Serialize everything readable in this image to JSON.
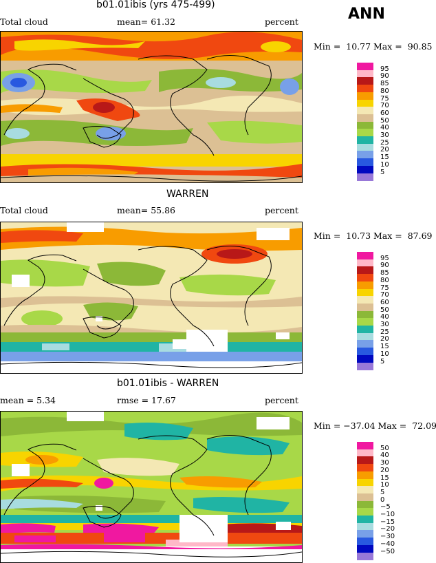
{
  "season": "ANN",
  "palette_colors": {
    "95": "#f018a0",
    "90": "#ffb8c8",
    "85": "#b81818",
    "80": "#f04810",
    "75": "#f89c00",
    "70": "#f8d400",
    "65": "#f4e8b4",
    "60": "#dcc094",
    "55": "#8cb838",
    "50": "#a8d848",
    "45": "#20b4a4",
    "40": "#a8dce0",
    "35": "#78a0e8",
    "30": "#2858e0",
    "25": "#0008c0",
    "20": "#9878d8"
  },
  "panels": [
    {
      "title": "b01.01ibis (yrs 475-499)",
      "left_label": "Total cloud",
      "center_label": "mean=  61.32",
      "units": "percent",
      "min_max": "Min =  10.77 Max =  90.85",
      "colorbar": {
        "labels": [
          "95",
          "90",
          "85",
          "80",
          "75",
          "70",
          "60",
          "50",
          "40",
          "30",
          "25",
          "20",
          "15",
          "10",
          "5"
        ],
        "colors": [
          "#f018a0",
          "#ffb8c8",
          "#b81818",
          "#f04810",
          "#f89c00",
          "#f8d400",
          "#f4e8b4",
          "#dcc094",
          "#8cb838",
          "#a8d848",
          "#20b4a4",
          "#a8dce0",
          "#78a0e8",
          "#2858e0",
          "#0008c0",
          "#9878d8"
        ]
      }
    },
    {
      "title": "WARREN",
      "left_label": "Total cloud",
      "center_label": "mean=  55.86",
      "units": "percent",
      "min_max": "Min =  10.73 Max =  87.69",
      "colorbar": {
        "labels": [
          "95",
          "90",
          "85",
          "80",
          "75",
          "70",
          "60",
          "50",
          "40",
          "30",
          "25",
          "20",
          "15",
          "10",
          "5"
        ],
        "colors": [
          "#f018a0",
          "#ffb8c8",
          "#b81818",
          "#f04810",
          "#f89c00",
          "#f8d400",
          "#f4e8b4",
          "#dcc094",
          "#8cb838",
          "#a8d848",
          "#20b4a4",
          "#a8dce0",
          "#78a0e8",
          "#2858e0",
          "#0008c0",
          "#9878d8"
        ]
      }
    },
    {
      "title": "b01.01ibis - WARREN",
      "left_label": "mean =    5.34",
      "center_label": "rmse =  17.67",
      "units": "percent",
      "min_max": "Min = −37.04 Max =  72.09",
      "colorbar": {
        "labels": [
          "50",
          "40",
          "30",
          "20",
          "15",
          "10",
          "5",
          "0",
          "−5",
          "−10",
          "−15",
          "−20",
          "−30",
          "−40",
          "−50"
        ],
        "colors": [
          "#f018a0",
          "#ffb8c8",
          "#b81818",
          "#f04810",
          "#f89c00",
          "#f8d400",
          "#f4e8b4",
          "#dcc094",
          "#8cb838",
          "#a8d848",
          "#20b4a4",
          "#a8dce0",
          "#78a0e8",
          "#2858e0",
          "#0008c0",
          "#9878d8"
        ]
      }
    }
  ],
  "chart_data": [
    {
      "type": "heatmap",
      "title": "b01.01ibis (yrs 475-499)",
      "variable": "Total cloud",
      "units": "percent",
      "mean": 61.32,
      "min": 10.77,
      "max": 90.85,
      "contour_levels": [
        5,
        10,
        15,
        20,
        25,
        30,
        40,
        50,
        60,
        70,
        75,
        80,
        85,
        90,
        95
      ]
    },
    {
      "type": "heatmap",
      "title": "WARREN",
      "variable": "Total cloud",
      "units": "percent",
      "mean": 55.86,
      "min": 10.73,
      "max": 87.69,
      "contour_levels": [
        5,
        10,
        15,
        20,
        25,
        30,
        40,
        50,
        60,
        70,
        75,
        80,
        85,
        90,
        95
      ]
    },
    {
      "type": "heatmap",
      "title": "b01.01ibis - WARREN",
      "units": "percent",
      "mean": 5.34,
      "rmse": 17.67,
      "min": -37.04,
      "max": 72.09,
      "contour_levels": [
        -50,
        -40,
        -30,
        -20,
        -15,
        -10,
        -5,
        0,
        5,
        10,
        15,
        20,
        30,
        40,
        50
      ]
    }
  ]
}
